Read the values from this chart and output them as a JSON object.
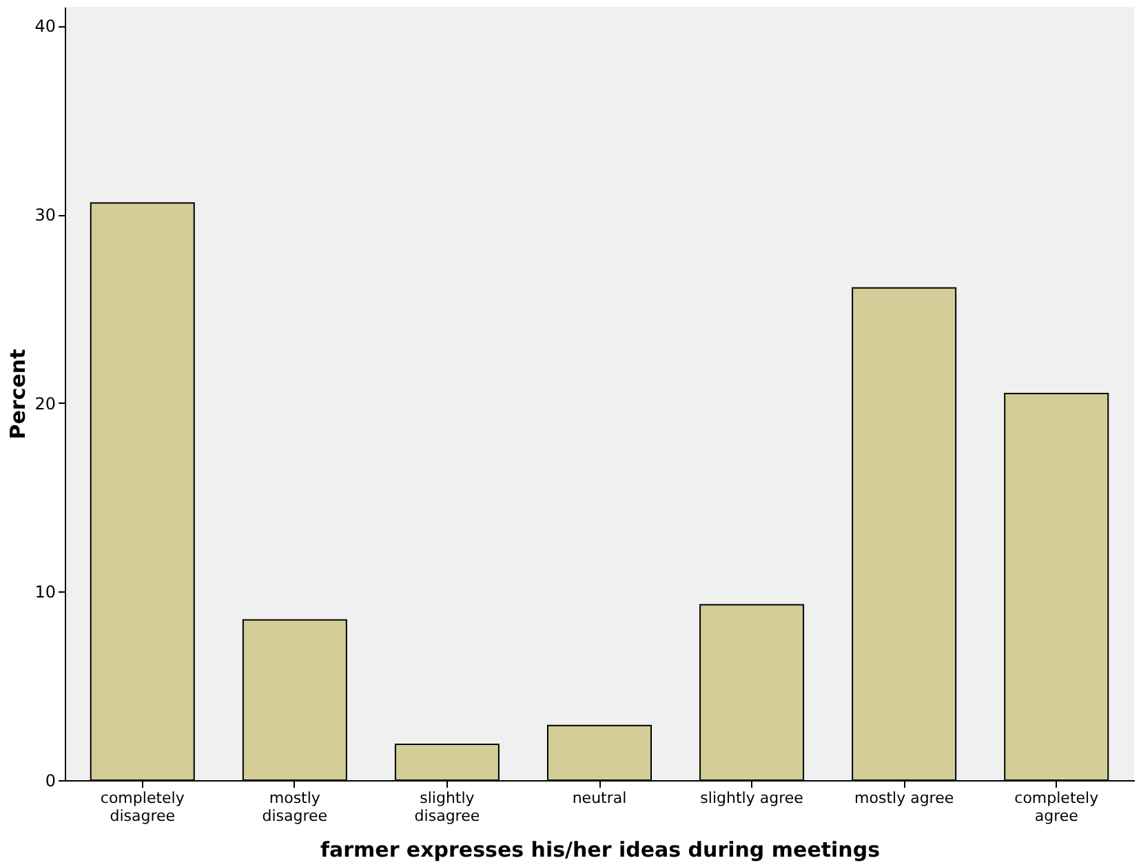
{
  "chart_data": {
    "type": "bar",
    "xlabel": "farmer expresses his/her ideas during meetings",
    "ylabel": "Percent",
    "categories": [
      "completely disagree",
      "mostly disagree",
      "slightly disagree",
      "neutral",
      "slightly agree",
      "mostly agree",
      "completely agree"
    ],
    "values": [
      30.6,
      8.5,
      1.9,
      2.9,
      9.3,
      26.1,
      20.5
    ],
    "color": "#d3ce97",
    "ylim": [
      0,
      41
    ],
    "yticks": [
      0,
      10,
      20,
      30,
      40
    ],
    "grid": false
  }
}
